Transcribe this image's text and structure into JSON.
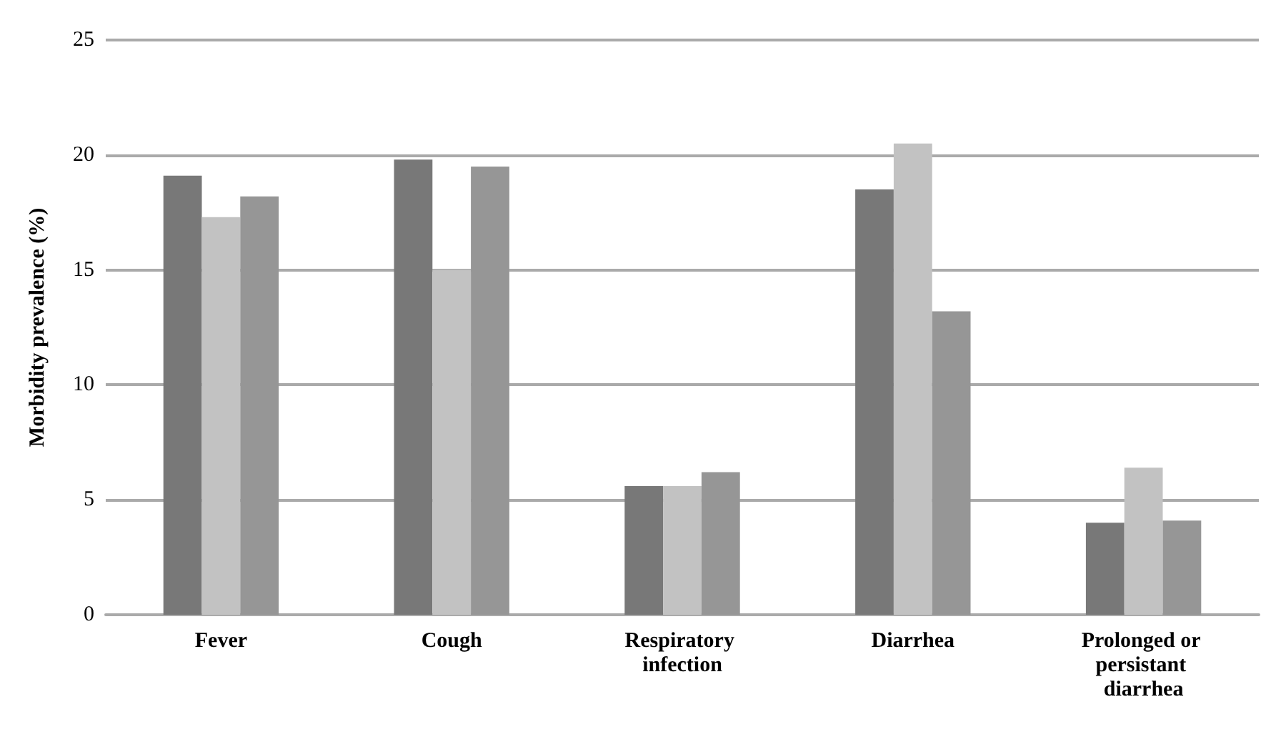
{
  "chart_data": {
    "type": "bar",
    "ylabel": "Morbidity prevalence (%)",
    "categories": [
      "Fever",
      "Cough",
      "Respiratory infection",
      "Diarrhea",
      "Prolonged or persistant diarrhea"
    ],
    "series": [
      {
        "color": "#787878",
        "values": [
          19.1,
          19.8,
          5.6,
          18.5,
          4.0
        ]
      },
      {
        "color": "#c2c2c2",
        "values": [
          17.3,
          15.0,
          5.6,
          20.5,
          6.4
        ]
      },
      {
        "color": "#969696",
        "values": [
          18.2,
          19.5,
          6.2,
          13.2,
          4.1
        ]
      }
    ],
    "ylim": [
      0,
      25
    ],
    "yticks": [
      0,
      5,
      10,
      15,
      20,
      25
    ],
    "grid": "y"
  }
}
